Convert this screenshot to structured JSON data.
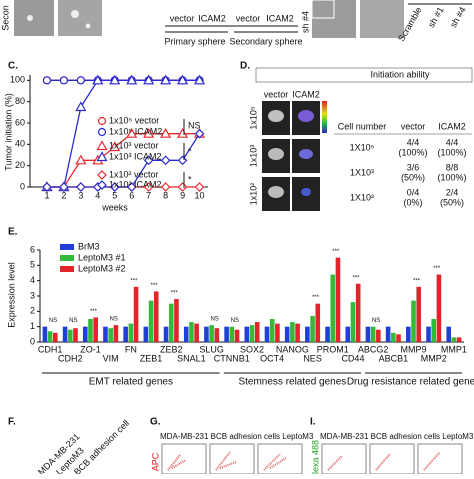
{
  "top_panels": {
    "sphere_rotated": "Secon",
    "labels": [
      "vector",
      "ICAM2",
      "vector",
      "ICAM2"
    ],
    "groups": [
      "Primary sphere",
      "Secondary sphere"
    ],
    "sh_rotated": "sh #4",
    "sh_labels": [
      "Scramble",
      "sh #1",
      "sh #4"
    ]
  },
  "chart_data": [
    {
      "type": "line",
      "panel": "C.",
      "y_label": "Tumor initiation (%)",
      "x_label": "weeks",
      "x": [
        1,
        2,
        3,
        4,
        5,
        6,
        7,
        8,
        9,
        10
      ],
      "xlim": [
        0,
        10.5
      ],
      "xticks": [
        1,
        2,
        3,
        4,
        5,
        6,
        7,
        8,
        9,
        10
      ],
      "ylim": [
        0,
        105
      ],
      "yticks": [
        0,
        20,
        40,
        60,
        80,
        100
      ],
      "series": [
        {
          "name": "1x10⁵ vector",
          "color": "#e8282d",
          "marker": "circle",
          "values": [
            100,
            100,
            100,
            100,
            100,
            100,
            100,
            100,
            100,
            100
          ]
        },
        {
          "name": "1x10⁵ ICAM2",
          "color": "#2a2ad0",
          "marker": "circle",
          "values": [
            100,
            100,
            100,
            100,
            100,
            100,
            100,
            100,
            100,
            100
          ]
        },
        {
          "name": "1x10³ vector",
          "color": "#e8282d",
          "marker": "triangle",
          "values": [
            0,
            0,
            25,
            25,
            37.5,
            50,
            50,
            50,
            50,
            50
          ]
        },
        {
          "name": "1x10³ ICAM2",
          "color": "#2a2ad0",
          "marker": "triangle",
          "values": [
            0,
            0,
            75,
            100,
            100,
            100,
            100,
            100,
            100,
            100
          ]
        },
        {
          "name": "1x10² vector",
          "color": "#e8282d",
          "marker": "diamond",
          "values": [
            0,
            0,
            0,
            0,
            0,
            0,
            0,
            0,
            0,
            0
          ]
        },
        {
          "name": "1x10² ICAM2",
          "color": "#2a2ad0",
          "marker": "diamond",
          "values": [
            0,
            0,
            0,
            0,
            0,
            0,
            25,
            25,
            25,
            50
          ]
        }
      ],
      "annotations": [
        {
          "text": "NS"
        },
        {
          "text": "*"
        },
        {
          "text": "*"
        }
      ]
    },
    {
      "type": "bar",
      "panel": "E.",
      "y_label": "Expression level",
      "categories": [
        "CDH1",
        "CDH2",
        "ZO-1",
        "VIM",
        "FN",
        "ZEB1",
        "ZEB2",
        "SNAL1",
        "SLUG",
        "CTNNB1",
        "SOX2",
        "OCT4",
        "NANOG",
        "NES",
        "PROM1",
        "CD44",
        "ABCG2",
        "ABCB1",
        "MMP9",
        "MMP2",
        "MMP1"
      ],
      "ylim": [
        0,
        6
      ],
      "yticks": [
        0,
        1,
        2,
        3,
        4,
        5,
        6
      ],
      "series": [
        {
          "name": "BrM3",
          "color": "#1f3fd6",
          "values": [
            1,
            1,
            1,
            1,
            1,
            1,
            1,
            1,
            1,
            1,
            1,
            1,
            1,
            1,
            1,
            1,
            1,
            1,
            1,
            1,
            1
          ]
        },
        {
          "name": "LeptoM3 #1",
          "color": "#35b93a",
          "values": [
            0.7,
            0.8,
            1.5,
            0.9,
            1.2,
            2.7,
            2.5,
            1.3,
            1.1,
            1.0,
            1.1,
            1.5,
            1.3,
            1.7,
            4.4,
            2.6,
            1.0,
            0.6,
            2.7,
            1.5,
            0.3
          ]
        },
        {
          "name": "LeptoM3 #2",
          "color": "#e3242b",
          "values": [
            0.6,
            0.9,
            1.6,
            1.1,
            3.6,
            3.3,
            2.8,
            1.2,
            0.9,
            0.8,
            1.3,
            1.2,
            1.2,
            2.5,
            5.5,
            3.8,
            0.8,
            0.5,
            3.6,
            4.4,
            0.3
          ]
        }
      ],
      "groups": [
        "EMT related genes",
        "Stemness related genes",
        "Drug resistance related genes"
      ],
      "annotations": [
        {
          "category": "CDH1",
          "text": "NS"
        },
        {
          "category": "CDH2",
          "text": "NS"
        },
        {
          "category": "ZO-1",
          "text": "***"
        },
        {
          "category": "VIM",
          "text": "NS"
        },
        {
          "category": "FN",
          "text": "***"
        },
        {
          "category": "ZEB1",
          "text": "***"
        },
        {
          "category": "ZEB2",
          "text": "***"
        },
        {
          "category": "SLUG",
          "text": "NS"
        },
        {
          "category": "CTNNB1",
          "text": "NS"
        },
        {
          "category": "NES",
          "text": "***"
        },
        {
          "category": "PROM1",
          "text": "***"
        },
        {
          "category": "CD44",
          "text": "***"
        },
        {
          "category": "ABCG2",
          "text": "NS"
        },
        {
          "category": "MMP9",
          "text": "***"
        },
        {
          "category": "MMP2",
          "text": "***"
        }
      ]
    }
  ],
  "panel_d": {
    "panel": "D.",
    "title": "Initiation ability",
    "image_headers": [
      "vector",
      "ICAM2"
    ],
    "row_labels": [
      "1x10⁵",
      "1x10³",
      "1x10²"
    ],
    "table": {
      "header": [
        "Cell number",
        "vector",
        "ICAM2"
      ],
      "rows": [
        [
          "1X10⁵",
          "4/4",
          "(100%)",
          "4/4",
          "(100%)"
        ],
        [
          "1X10³",
          "3/6",
          "(50%)",
          "8/8",
          "(100%)"
        ],
        [
          "1X10²",
          "0/4",
          "(0%)",
          "2/4",
          "(50%)"
        ]
      ]
    }
  },
  "bottom_panels": {
    "f_panel": "F.",
    "f_labels": [
      "MDA-MB-231",
      "LeptoM3",
      "BCB adhesion cell"
    ],
    "g_panel": "G.",
    "g_header": "MDA-MB-231 BCB adhesion cells LeptoM3",
    "g_axis": "APC",
    "i_panel": "I.",
    "i_header": "MDA-MB-231 BCB adhesion cells LeptoM3",
    "i_axis": "Alexa 488"
  }
}
